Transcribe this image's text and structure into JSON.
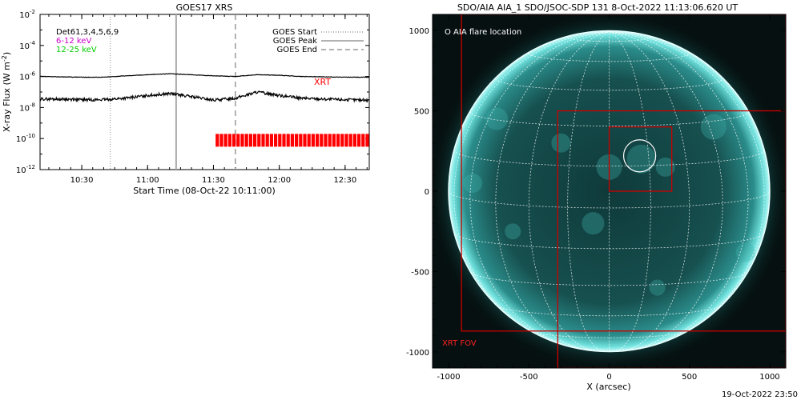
{
  "left_chart": {
    "title": "GOES17 XRS",
    "xlabel": "Start Time (08-Oct-22 10:11:00)",
    "ylabel": "X-ray Flux (W m",
    "ylabel_exp": "-2",
    "ylabel_close": ")",
    "legend_left": [
      {
        "text": "Det61,3,4,5,6,9",
        "color": "#000000"
      },
      {
        "text": "6-12 keV",
        "color": "#cc00cc"
      },
      {
        "text": "12-25 keV",
        "color": "#00cc00"
      }
    ],
    "legend_right": [
      {
        "text": "GOES Start",
        "style": "dotted"
      },
      {
        "text": "GOES Peak",
        "style": "solid"
      },
      {
        "text": "GOES End",
        "style": "dashed"
      }
    ],
    "xrt_label": "XRT",
    "y_ticks": [
      {
        "base": "10",
        "exp": "-2"
      },
      {
        "base": "10",
        "exp": "-4"
      },
      {
        "base": "10",
        "exp": "-6"
      },
      {
        "base": "10",
        "exp": "-8"
      },
      {
        "base": "10",
        "exp": "-10"
      },
      {
        "base": "10",
        "exp": "-12"
      }
    ],
    "x_ticks": [
      "10:30",
      "11:00",
      "11:30",
      "12:00",
      "12:30"
    ]
  },
  "right_chart": {
    "title": "SDO/AIA AIA_1 SDO/JSOC-SDP 131  8-Oct-2022 11:13:06.620 UT",
    "legend": "O AIA flare location",
    "fov_label": "XRT FOV",
    "xlabel": "X (arcsec)",
    "x_ticks": [
      "-1000",
      "-500",
      "0",
      "500",
      "1000"
    ],
    "y_ticks": [
      "1000",
      "500",
      "0",
      "-500",
      "-1000"
    ]
  },
  "footer_date": "19-Oct-2022 23:50",
  "chart_data": [
    {
      "type": "line",
      "title": "GOES17 XRS",
      "xlabel": "Start Time (08-Oct-22 10:11:00)",
      "ylabel": "X-ray Flux (W m-2)",
      "y_scale": "log",
      "ylim": [
        1e-12,
        0.01
      ],
      "xlim": [
        "10:11",
        "12:41"
      ],
      "x_ticks": [
        "10:30",
        "11:00",
        "11:30",
        "12:00",
        "12:30"
      ],
      "grid": false,
      "series": [
        {
          "name": "6-12 keV",
          "color": "#000000",
          "x": [
            "10:11",
            "10:20",
            "10:30",
            "10:40",
            "10:50",
            "11:00",
            "11:10",
            "11:20",
            "11:30",
            "11:40",
            "11:50",
            "12:00",
            "12:10",
            "12:20",
            "12:30",
            "12:41"
          ],
          "y": [
            1e-06,
            9.5e-07,
            9e-07,
            9e-07,
            1.1e-06,
            1.3e-06,
            1.5e-06,
            1.3e-06,
            1.1e-06,
            1e-06,
            1.3e-06,
            1.2e-06,
            1e-06,
            9.5e-07,
            9e-07,
            9e-07
          ]
        },
        {
          "name": "12-25 keV",
          "color": "#000000",
          "x": [
            "10:11",
            "10:20",
            "10:30",
            "10:40",
            "10:50",
            "11:00",
            "11:10",
            "11:20",
            "11:30",
            "11:40",
            "11:50",
            "12:00",
            "12:10",
            "12:20",
            "12:30",
            "12:41"
          ],
          "y": [
            3.5e-08,
            3.5e-08,
            3.2e-08,
            3.2e-08,
            4e-08,
            6e-08,
            8e-08,
            5e-08,
            3e-08,
            4e-08,
            1e-07,
            6e-08,
            4e-08,
            3.5e-08,
            3.2e-08,
            3e-08
          ]
        }
      ],
      "markers": [
        {
          "label": "GOES Start",
          "x": "10:43",
          "style": "dotted"
        },
        {
          "label": "GOES Peak",
          "x": "11:13",
          "style": "solid"
        },
        {
          "label": "GOES End",
          "x": "11:40",
          "style": "dashed"
        }
      ],
      "xrt_coverage": {
        "label": "XRT",
        "from": "11:31",
        "to": "12:41",
        "color": "#ff0000"
      }
    },
    {
      "type": "image",
      "title": "SDO/AIA AIA_1 SDO/JSOC-SDP 131  8-Oct-2022 11:13:06.620 UT",
      "xlabel": "X (arcsec)",
      "xlim": [
        -1100,
        1100
      ],
      "ylim": [
        -1100,
        1100
      ],
      "x_ticks": [
        -1000,
        -500,
        0,
        500,
        1000
      ],
      "y_ticks": [
        1000,
        500,
        0,
        -500,
        -1000
      ],
      "solar_radius_arcsec": 1000,
      "flare_location": {
        "x": 190,
        "y": 220,
        "r": 100
      },
      "boxes": [
        {
          "name": "XRT FOV",
          "x0": -920,
          "x1": 1100,
          "y0": -870,
          "y1": 1100,
          "color": "#cc0000"
        },
        {
          "name": "",
          "x0": -320,
          "x1": 1100,
          "y0": -1100,
          "y1": 500,
          "color": "#cc0000"
        },
        {
          "name": "",
          "x0": 0,
          "x1": 390,
          "y0": 0,
          "y1": 400,
          "color": "#cc0000"
        }
      ]
    }
  ]
}
